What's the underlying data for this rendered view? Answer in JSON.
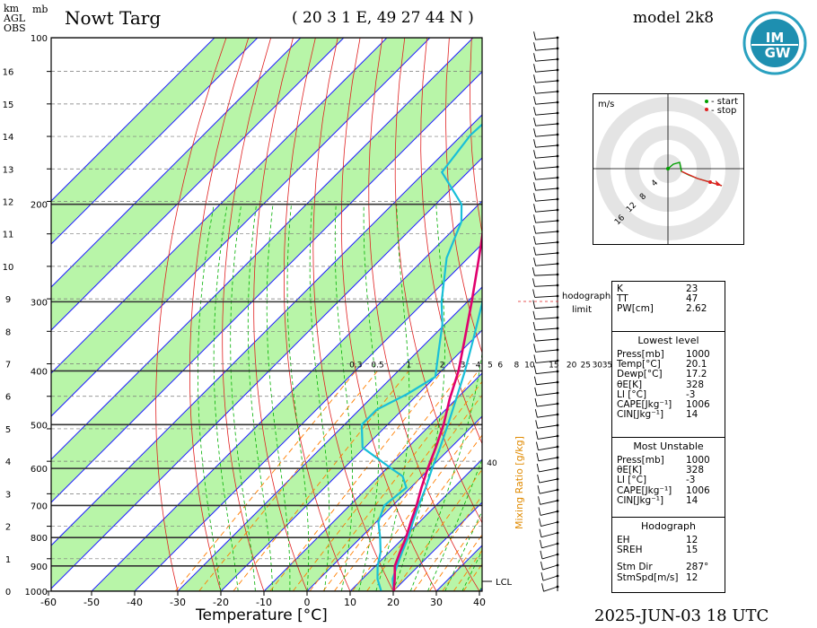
{
  "header": {
    "title": "Nowt Targ",
    "coords": "( 20 3 1 E, 49 27 44 N )",
    "model": "model 2k8",
    "datetime": "2025-JUN-03   18 UTC",
    "units_left": [
      "km",
      "AGL",
      "OBS"
    ],
    "units_mb": "mb"
  },
  "chart_data": {
    "type": "skew-t",
    "title": "Nowt Targ",
    "xlabel": "Temperature [°C]",
    "x_ticks": [
      -60,
      -50,
      -40,
      -30,
      -20,
      -10,
      0,
      10,
      20,
      30,
      40
    ],
    "x_tick_labels": [
      "-60",
      "-50",
      "-40",
      "-30",
      "-20",
      "-10",
      "0",
      "10",
      "20",
      "30",
      "40"
    ],
    "pressure_ticks": [
      100,
      200,
      300,
      400,
      500,
      600,
      700,
      800,
      900,
      1000
    ],
    "km_ticks": [
      0,
      1,
      2,
      3,
      4,
      5,
      6,
      7,
      8,
      9,
      10,
      11,
      12,
      13,
      14,
      15,
      16
    ],
    "mixing_ratio_labels": [
      "0.3",
      "0.5",
      "1",
      "2",
      "3",
      "4",
      "5",
      "6",
      "8",
      "10",
      "15",
      "20",
      "25",
      "30",
      "35"
    ],
    "mixing_ratio_axis_label": "Mixing Ratio [g/kg]",
    "mixing_ratio_extra": "40",
    "lcl_label": "LCL",
    "hodograph_limit_label": [
      "hodograph",
      "limit"
    ],
    "temperature_profile": [
      {
        "p": 1000,
        "t": 20.1
      },
      {
        "p": 950,
        "t": 17.5
      },
      {
        "p": 900,
        "t": 14.5
      },
      {
        "p": 850,
        "t": 12.5
      },
      {
        "p": 800,
        "t": 10.5
      },
      {
        "p": 750,
        "t": 8.0
      },
      {
        "p": 700,
        "t": 5.5
      },
      {
        "p": 650,
        "t": 2.5
      },
      {
        "p": 600,
        "t": -0.5
      },
      {
        "p": 550,
        "t": -3.5
      },
      {
        "p": 500,
        "t": -7.0
      },
      {
        "p": 450,
        "t": -11.5
      },
      {
        "p": 400,
        "t": -16.0
      },
      {
        "p": 350,
        "t": -22.0
      },
      {
        "p": 300,
        "t": -29.0
      },
      {
        "p": 250,
        "t": -37.5
      },
      {
        "p": 225,
        "t": -42.5
      },
      {
        "p": 200,
        "t": -47.0
      },
      {
        "p": 175,
        "t": -49.0
      },
      {
        "p": 150,
        "t": -52.0
      },
      {
        "p": 125,
        "t": -56.0
      },
      {
        "p": 100,
        "t": -61.0
      }
    ],
    "dewpoint_profile": [
      {
        "p": 1000,
        "t": 17.2
      },
      {
        "p": 950,
        "t": 13.5
      },
      {
        "p": 900,
        "t": 10.5
      },
      {
        "p": 850,
        "t": 8.0
      },
      {
        "p": 800,
        "t": 4.5
      },
      {
        "p": 750,
        "t": 0.5
      },
      {
        "p": 700,
        "t": -2.0
      },
      {
        "p": 650,
        "t": -1.0
      },
      {
        "p": 620,
        "t": -4.5
      },
      {
        "p": 600,
        "t": -9.0
      },
      {
        "p": 550,
        "t": -20.5
      },
      {
        "p": 500,
        "t": -26.0
      },
      {
        "p": 470,
        "t": -26.0
      },
      {
        "p": 440,
        "t": -22.5
      },
      {
        "p": 410,
        "t": -20.0
      },
      {
        "p": 370,
        "t": -25.0
      },
      {
        "p": 330,
        "t": -30.5
      },
      {
        "p": 300,
        "t": -36.0
      },
      {
        "p": 250,
        "t": -45.0
      },
      {
        "p": 215,
        "t": -50.0
      },
      {
        "p": 200,
        "t": -54.0
      },
      {
        "p": 175,
        "t": -66.0
      },
      {
        "p": 150,
        "t": -68.0
      },
      {
        "p": 125,
        "t": -67.0
      },
      {
        "p": 110,
        "t": -68.0
      }
    ],
    "parcel_profile": [
      {
        "p": 1000,
        "t": 20.1
      },
      {
        "p": 950,
        "t": 17.0
      },
      {
        "p": 900,
        "t": 15.0
      },
      {
        "p": 850,
        "t": 13.0
      },
      {
        "p": 800,
        "t": 11.0
      },
      {
        "p": 750,
        "t": 8.5
      },
      {
        "p": 700,
        "t": 6.0
      },
      {
        "p": 650,
        "t": 3.5
      },
      {
        "p": 600,
        "t": 0.5
      },
      {
        "p": 550,
        "t": -2.5
      },
      {
        "p": 500,
        "t": -6.0
      },
      {
        "p": 450,
        "t": -10.0
      },
      {
        "p": 400,
        "t": -14.5
      },
      {
        "p": 350,
        "t": -20.0
      },
      {
        "p": 300,
        "t": -26.5
      },
      {
        "p": 250,
        "t": -35.0
      },
      {
        "p": 215,
        "t": -42.0
      }
    ]
  },
  "hodograph": {
    "unit": "m/s",
    "legend": [
      "- start",
      "- stop"
    ],
    "ring_labels": [
      "4",
      "8",
      "12",
      "16"
    ]
  },
  "indices": {
    "top": [
      {
        "k": "K",
        "v": "23"
      },
      {
        "k": "TT",
        "v": "47"
      },
      {
        "k": "PW[cm]",
        "v": "2.62"
      }
    ],
    "lowest": {
      "title": "Lowest level",
      "rows": [
        {
          "k": "Press[mb]",
          "v": "1000"
        },
        {
          "k": "Temp[°C]",
          "v": "20.1"
        },
        {
          "k": "Dewp[°C]",
          "v": "17.2"
        },
        {
          "k": "θE[K]",
          "v": "328"
        },
        {
          "k": "LI [°C]",
          "v": "-3"
        },
        {
          "k": "CAPE[Jkg⁻¹]",
          "v": "1006"
        },
        {
          "k": "CIN[Jkg⁻¹]",
          "v": "14"
        }
      ]
    },
    "unstable": {
      "title": "Most Unstable",
      "rows": [
        {
          "k": "Press[mb]",
          "v": "1000"
        },
        {
          "k": "θE[K]",
          "v": "328"
        },
        {
          "k": "LI [°C]",
          "v": "-3"
        },
        {
          "k": "CAPE[Jkg⁻¹]",
          "v": "1006"
        },
        {
          "k": "CIN[Jkg⁻¹]",
          "v": "14"
        }
      ]
    },
    "hodo": {
      "title": "Hodograph",
      "rows": [
        {
          "k": "EH",
          "v": "12"
        },
        {
          "k": "SREH",
          "v": "15"
        },
        {
          "k": "Stm Dir",
          "v": "287°"
        },
        {
          "k": "StmSpd[m/s]",
          "v": "12"
        }
      ]
    }
  },
  "logo": {
    "text_top": "IM",
    "text_bottom": "GW"
  },
  "colors": {
    "band": "#b8f5a8",
    "temperature": "#e0006e",
    "dewpoint": "#19bfd8",
    "isotherm": "#2020ff",
    "dry_adiabat": "#e02020",
    "moist_adiabat": "#00b000",
    "mixing_ratio": "#ff7f00"
  }
}
